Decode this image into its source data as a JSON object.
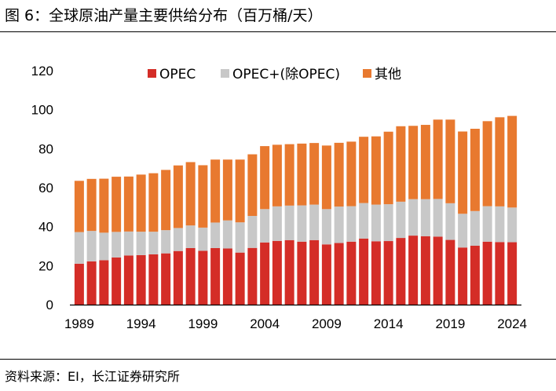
{
  "header": {
    "title": "图 6：全球原油产量主要供给分布（百万桶/天）"
  },
  "footer": {
    "source": "资料来源：EI，长江证券研究所"
  },
  "chart_data": {
    "type": "bar",
    "stacked": true,
    "title": "全球原油产量主要供给分布（百万桶/天）",
    "xlabel": "",
    "ylabel": "",
    "ylim": [
      0,
      120
    ],
    "yticks": [
      0,
      20,
      40,
      60,
      80,
      100,
      120
    ],
    "grid": false,
    "legend_position": "top",
    "categories": [
      "1989",
      "1990",
      "1991",
      "1992",
      "1993",
      "1994",
      "1995",
      "1996",
      "1997",
      "1998",
      "1999",
      "2000",
      "2001",
      "2002",
      "2003",
      "2004",
      "2005",
      "2006",
      "2007",
      "2008",
      "2009",
      "2010",
      "2011",
      "2012",
      "2013",
      "2014",
      "2015",
      "2016",
      "2017",
      "2018",
      "2019",
      "2020",
      "2021",
      "2022",
      "2023",
      "2024"
    ],
    "xtick_labels": [
      "1989",
      "1994",
      "1999",
      "2004",
      "2009",
      "2014",
      "2019",
      "2024"
    ],
    "series": [
      {
        "name": "OPEC",
        "color": "#d42d27",
        "values": [
          21.0,
          22.2,
          22.8,
          24.2,
          25.2,
          25.4,
          25.8,
          26.3,
          27.5,
          29.0,
          27.6,
          29.0,
          28.8,
          26.7,
          29.1,
          31.9,
          32.7,
          33.1,
          32.3,
          33.1,
          30.9,
          31.6,
          32.3,
          33.9,
          32.5,
          32.6,
          34.2,
          35.4,
          35.1,
          34.9,
          33.2,
          29.3,
          30.2,
          32.3,
          32.1,
          32.0
        ]
      },
      {
        "name": "OPEC+(除OPEC)",
        "color": "#c8c8c8",
        "values": [
          16.2,
          15.6,
          14.1,
          13.1,
          12.3,
          12.0,
          11.6,
          11.9,
          11.8,
          11.6,
          11.9,
          13.1,
          14.4,
          15.5,
          16.4,
          17.1,
          17.7,
          17.7,
          18.6,
          18.2,
          18.1,
          18.7,
          18.2,
          18.2,
          18.8,
          18.9,
          18.6,
          18.7,
          19.0,
          19.3,
          18.8,
          17.3,
          17.8,
          18.2,
          18.3,
          17.8
        ]
      },
      {
        "name": "其他",
        "color": "#e8792f",
        "values": [
          26.3,
          26.7,
          27.7,
          28.3,
          28.2,
          29.3,
          30.0,
          30.9,
          32.1,
          32.5,
          32.0,
          32.3,
          31.2,
          32.2,
          31.6,
          32.3,
          31.6,
          31.5,
          31.7,
          31.6,
          32.6,
          32.7,
          33.1,
          34.0,
          35.0,
          37.2,
          38.7,
          37.6,
          38.1,
          40.7,
          42.9,
          42.2,
          42.2,
          43.6,
          45.7,
          47.0
        ]
      }
    ]
  }
}
